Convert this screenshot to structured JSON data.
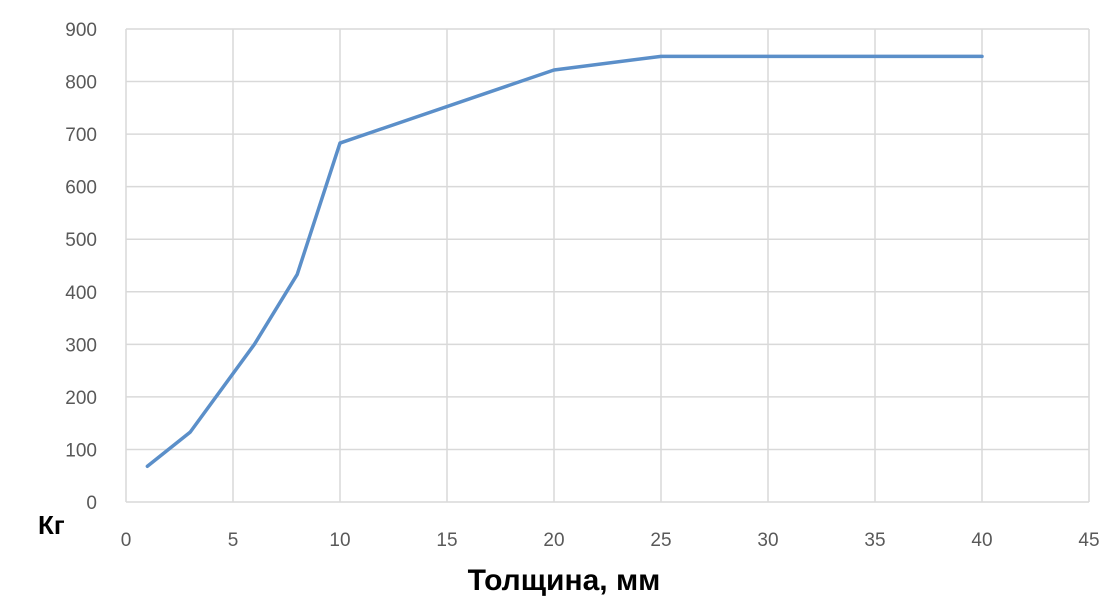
{
  "chart_data": {
    "type": "line",
    "title": "",
    "xlabel": "Толщина, мм",
    "ylabel": "Кг",
    "xlim": [
      0,
      45
    ],
    "ylim": [
      0,
      900
    ],
    "x_ticks": [
      0,
      5,
      10,
      15,
      20,
      25,
      30,
      35,
      40,
      45
    ],
    "y_ticks": [
      0,
      100,
      200,
      300,
      400,
      500,
      600,
      700,
      800,
      900
    ],
    "grid": true,
    "series": [
      {
        "color": "#5b8fc9",
        "x": [
          1,
          3,
          6,
          8,
          10,
          20,
          25,
          40
        ],
        "y": [
          68,
          133,
          300,
          433,
          683,
          822,
          848,
          848
        ]
      }
    ]
  }
}
